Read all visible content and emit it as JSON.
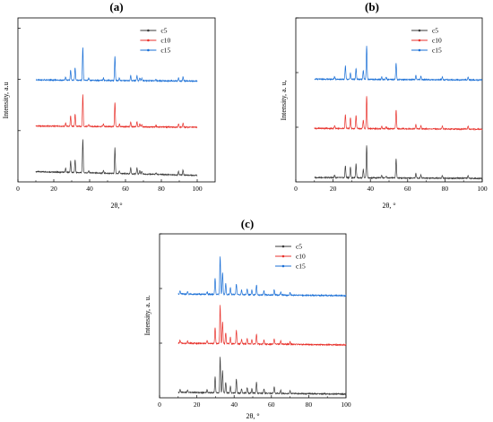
{
  "figure": {
    "colors": {
      "c5": "#3a3a3a",
      "c10": "#e8322c",
      "c15": "#1a6fd6",
      "axis": "#000000"
    }
  },
  "chart_data": [
    {
      "panel": "(a)",
      "type": "line",
      "xlabel": "2θ,°",
      "ylabel": "Intensity, a.u",
      "xlim": [
        0,
        110
      ],
      "x_ticks": [
        0,
        20,
        40,
        60,
        80,
        100
      ],
      "x_tick_labels": [
        "0",
        "20",
        "40",
        "60",
        "80",
        "100"
      ],
      "y_ticks": [
        1,
        2,
        3
      ],
      "legend_position": "top-right",
      "legend": [
        "c5",
        "c10",
        "c15"
      ],
      "x_range": [
        10,
        100
      ],
      "series": [
        {
          "name": "c5",
          "offset": 0.1,
          "base": 0.09,
          "peaks": [
            [
              26.6,
              0.08
            ],
            [
              29.4,
              0.22
            ],
            [
              31.9,
              0.25
            ],
            [
              36.2,
              0.65
            ],
            [
              39.5,
              0.04
            ],
            [
              47.7,
              0.05
            ],
            [
              54.1,
              0.5
            ],
            [
              56.6,
              0.05
            ],
            [
              62.9,
              0.12
            ],
            [
              66.4,
              0.12
            ],
            [
              68,
              0.07
            ],
            [
              69.1,
              0.05
            ],
            [
              77,
              0.03
            ],
            [
              89.6,
              0.07
            ],
            [
              92.1,
              0.1
            ]
          ]
        },
        {
          "name": "c10",
          "offset": 1.05,
          "base": 0.03,
          "peaks": [
            [
              26.6,
              0.06
            ],
            [
              29.4,
              0.2
            ],
            [
              31.9,
              0.24
            ],
            [
              36.2,
              0.62
            ],
            [
              39.5,
              0.04
            ],
            [
              47.7,
              0.05
            ],
            [
              54.1,
              0.48
            ],
            [
              56.6,
              0.05
            ],
            [
              62.9,
              0.1
            ],
            [
              66.4,
              0.1
            ],
            [
              68,
              0.06
            ],
            [
              69.1,
              0.05
            ],
            [
              77,
              0.03
            ],
            [
              89.6,
              0.06
            ],
            [
              92.1,
              0.08
            ]
          ]
        },
        {
          "name": "c15",
          "offset": 1.95,
          "base": 0.03,
          "peaks": [
            [
              26.6,
              0.06
            ],
            [
              29.4,
              0.2
            ],
            [
              31.9,
              0.24
            ],
            [
              36.2,
              0.65
            ],
            [
              39.5,
              0.04
            ],
            [
              47.7,
              0.05
            ],
            [
              54.1,
              0.48
            ],
            [
              56.6,
              0.05
            ],
            [
              62.9,
              0.1
            ],
            [
              66.4,
              0.1
            ],
            [
              68,
              0.06
            ],
            [
              69.1,
              0.05
            ],
            [
              77,
              0.03
            ],
            [
              89.6,
              0.06
            ],
            [
              92.1,
              0.08
            ]
          ]
        }
      ]
    },
    {
      "panel": "(b)",
      "type": "line",
      "xlabel": "2θ, °",
      "ylabel": "Intensity, a. u,",
      "xlim": [
        0,
        100
      ],
      "x_ticks": [
        0,
        20,
        40,
        60,
        80,
        100
      ],
      "x_tick_labels": [
        "0",
        "20",
        "40",
        "60",
        "80",
        "100"
      ],
      "y_ticks": [
        1,
        2,
        3
      ],
      "legend_position": "top-right",
      "legend": [
        "c5",
        "c10",
        "c15"
      ],
      "x_range": [
        10,
        100
      ],
      "series": [
        {
          "name": "c5",
          "offset": 0.05,
          "base": 0.02,
          "peaks": [
            [
              20.8,
              0.05
            ],
            [
              26.6,
              0.22
            ],
            [
              29.3,
              0.2
            ],
            [
              32.3,
              0.25
            ],
            [
              36.2,
              0.16
            ],
            [
              38,
              0.6
            ],
            [
              46.1,
              0.05
            ],
            [
              48.5,
              0.03
            ],
            [
              53.8,
              0.35
            ],
            [
              64.4,
              0.08
            ],
            [
              67.1,
              0.06
            ],
            [
              78.6,
              0.05
            ],
            [
              92.4,
              0.05
            ]
          ]
        },
        {
          "name": "c10",
          "offset": 0.95,
          "base": 0.02,
          "peaks": [
            [
              20.8,
              0.05
            ],
            [
              26.6,
              0.25
            ],
            [
              29.3,
              0.2
            ],
            [
              32.3,
              0.24
            ],
            [
              36.2,
              0.16
            ],
            [
              38,
              0.6
            ],
            [
              46.1,
              0.05
            ],
            [
              48.5,
              0.04
            ],
            [
              53.8,
              0.35
            ],
            [
              64.4,
              0.08
            ],
            [
              67.1,
              0.06
            ],
            [
              78.6,
              0.05
            ],
            [
              92.4,
              0.05
            ]
          ]
        },
        {
          "name": "c15",
          "offset": 1.85,
          "base": 0.02,
          "peaks": [
            [
              20.8,
              0.05
            ],
            [
              26.6,
              0.25
            ],
            [
              29.3,
              0.12
            ],
            [
              32.3,
              0.2
            ],
            [
              36.2,
              0.16
            ],
            [
              38,
              0.62
            ],
            [
              46.1,
              0.05
            ],
            [
              48.5,
              0.04
            ],
            [
              53.8,
              0.3
            ],
            [
              64.4,
              0.08
            ],
            [
              67.1,
              0.06
            ],
            [
              78.6,
              0.05
            ],
            [
              92.4,
              0.05
            ]
          ]
        }
      ]
    },
    {
      "panel": "(c)",
      "type": "line",
      "xlabel": "2θ, °",
      "ylabel": "Intensity, a. u.",
      "xlim": [
        0,
        100
      ],
      "x_ticks": [
        0,
        20,
        40,
        60,
        80,
        100
      ],
      "x_tick_labels": [
        "0",
        "20",
        "40",
        "60",
        "80",
        "100"
      ],
      "y_ticks": [
        1,
        2,
        3
      ],
      "legend_position": "top-right",
      "legend": [
        "c5",
        "c10",
        "c15"
      ],
      "x_range": [
        10,
        100
      ],
      "series": [
        {
          "name": "c5",
          "offset": 0.05,
          "base": 0.04,
          "peaks": [
            [
              11,
              0.05
            ],
            [
              15,
              0.04
            ],
            [
              25.5,
              0.05
            ],
            [
              29.8,
              0.3
            ],
            [
              32.5,
              0.65
            ],
            [
              33.8,
              0.4
            ],
            [
              35.5,
              0.2
            ],
            [
              38,
              0.12
            ],
            [
              41.2,
              0.25
            ],
            [
              44,
              0.08
            ],
            [
              47,
              0.1
            ],
            [
              49.5,
              0.08
            ],
            [
              52,
              0.2
            ],
            [
              56,
              0.08
            ],
            [
              61.5,
              0.12
            ],
            [
              65,
              0.06
            ],
            [
              70,
              0.05
            ]
          ]
        },
        {
          "name": "c10",
          "offset": 0.95,
          "base": 0.04,
          "peaks": [
            [
              11,
              0.05
            ],
            [
              15,
              0.04
            ],
            [
              25.5,
              0.05
            ],
            [
              29.8,
              0.3
            ],
            [
              32.5,
              0.7
            ],
            [
              33.8,
              0.4
            ],
            [
              35.5,
              0.2
            ],
            [
              38,
              0.12
            ],
            [
              41.2,
              0.25
            ],
            [
              44,
              0.08
            ],
            [
              47,
              0.1
            ],
            [
              49.5,
              0.08
            ],
            [
              52,
              0.18
            ],
            [
              56,
              0.07
            ],
            [
              61.5,
              0.1
            ],
            [
              65,
              0.06
            ],
            [
              70,
              0.05
            ]
          ]
        },
        {
          "name": "c15",
          "offset": 1.85,
          "base": 0.04,
          "peaks": [
            [
              11,
              0.06
            ],
            [
              15,
              0.04
            ],
            [
              25.5,
              0.05
            ],
            [
              29.8,
              0.3
            ],
            [
              32.5,
              0.7
            ],
            [
              33.8,
              0.4
            ],
            [
              35.5,
              0.2
            ],
            [
              38,
              0.12
            ],
            [
              41.2,
              0.2
            ],
            [
              44,
              0.08
            ],
            [
              47,
              0.1
            ],
            [
              49.5,
              0.08
            ],
            [
              52,
              0.18
            ],
            [
              56,
              0.07
            ],
            [
              61.5,
              0.1
            ],
            [
              65,
              0.06
            ],
            [
              70,
              0.05
            ]
          ]
        }
      ]
    }
  ]
}
